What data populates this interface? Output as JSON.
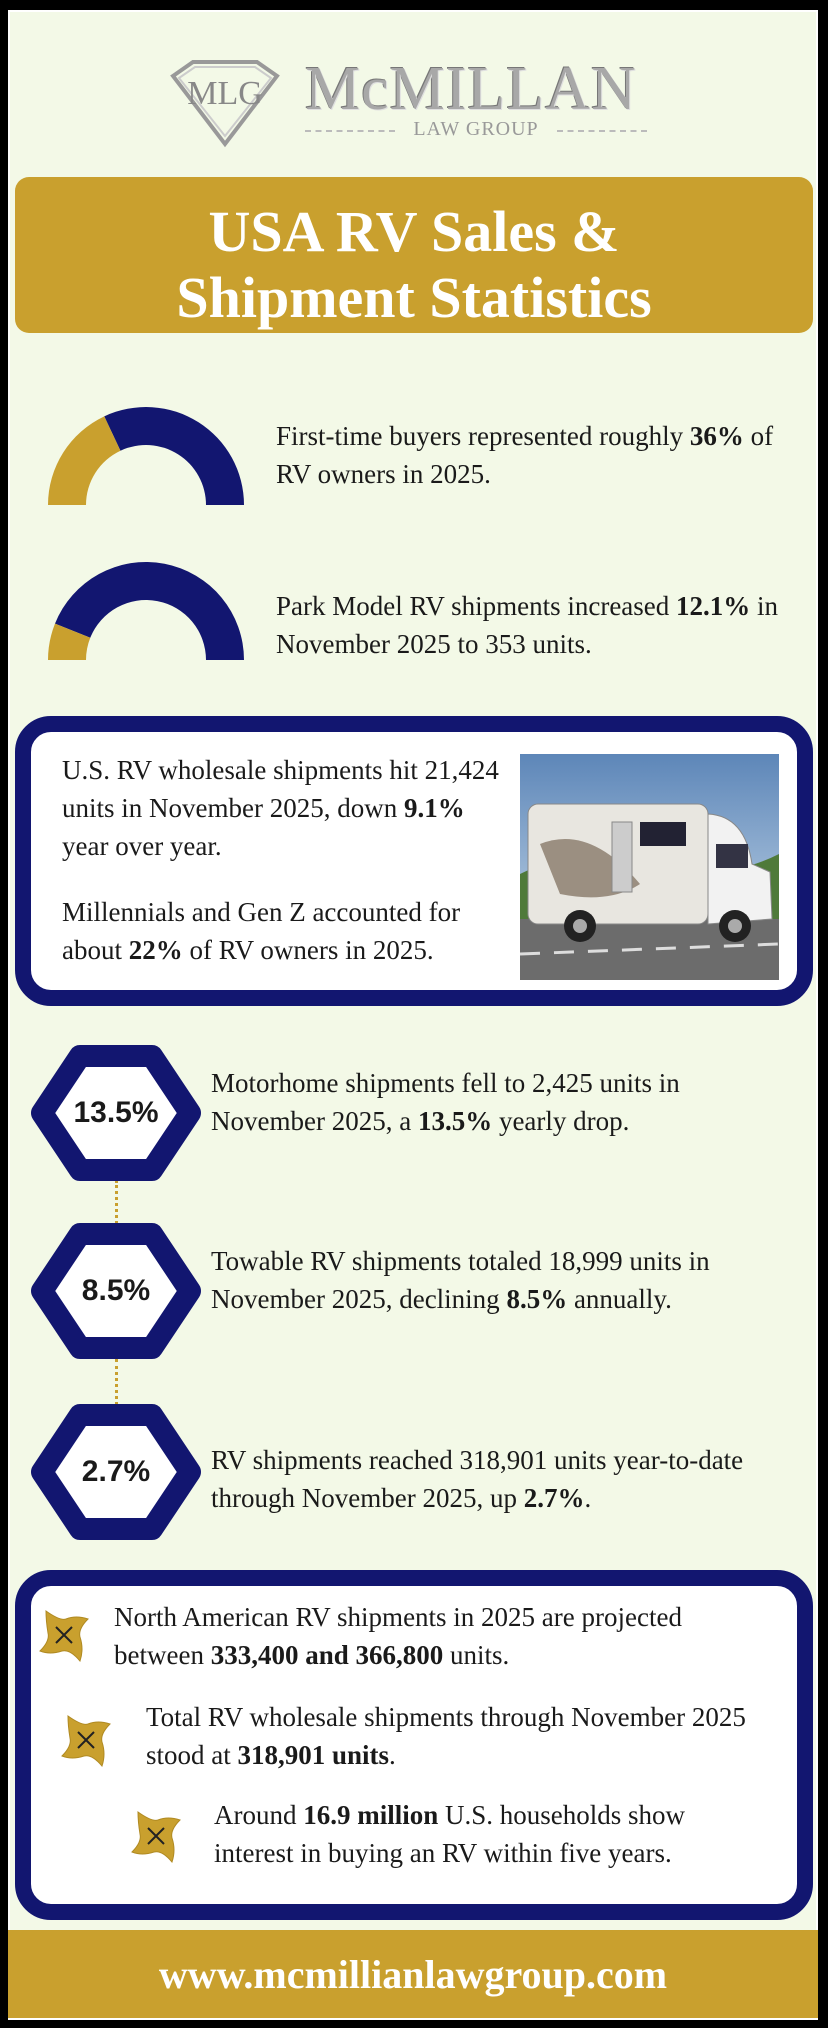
{
  "logo": {
    "monogram": "MLG",
    "name": "McMILLAN",
    "subtitle": "LAW GROUP"
  },
  "title": {
    "line1": "USA RV Sales &",
    "line2": "Shipment Statistics"
  },
  "colors": {
    "gold": "#c9a02e",
    "navy": "#121670",
    "background": "#f3f9e7"
  },
  "gauges": [
    {
      "percent": 36,
      "pre": "First-time buyers represented roughly ",
      "bold": "36%",
      "post": " of RV owners in 2025."
    },
    {
      "percent": 12.1,
      "pre": "Park Model RV shipments increased ",
      "bold": "12.1%",
      "post": " in November 2025 to 353 units."
    }
  ],
  "highlight_box": {
    "stats": [
      {
        "pre": "U.S. RV wholesale shipments hit 21,424 units in November 2025, down ",
        "bold": "9.1%",
        "post": " year over year."
      },
      {
        "pre": "Millennials and Gen Z accounted for about ",
        "bold": "22%",
        "post": " of RV owners in 2025."
      }
    ]
  },
  "hex_stats": [
    {
      "label": "13.5%",
      "pre": "Motorhome shipments fell to 2,425 units in November 2025, a ",
      "bold": "13.5%",
      "post": " yearly drop."
    },
    {
      "label": "8.5%",
      "pre": "Towable RV shipments totaled 18,999 units in November 2025, declining ",
      "bold": "8.5%",
      "post": " annually."
    },
    {
      "label": "2.7%",
      "pre": "RV shipments reached 318,901 units year-to-date through November 2025, up ",
      "bold": "2.7%",
      "post": "."
    }
  ],
  "bullets": [
    {
      "pre": "North American RV shipments in 2025 are projected between ",
      "bold": "333,400 and 366,800",
      "post": " units."
    },
    {
      "pre": "Total RV wholesale shipments through November 2025 stood at ",
      "bold": "318,901 units",
      "post": "."
    },
    {
      "pre": "Around ",
      "bold": "16.9 million",
      "post": " U.S. households show interest in buying an RV within five years."
    }
  ],
  "footer": {
    "url": "www.mcmillianlawgroup.com"
  }
}
